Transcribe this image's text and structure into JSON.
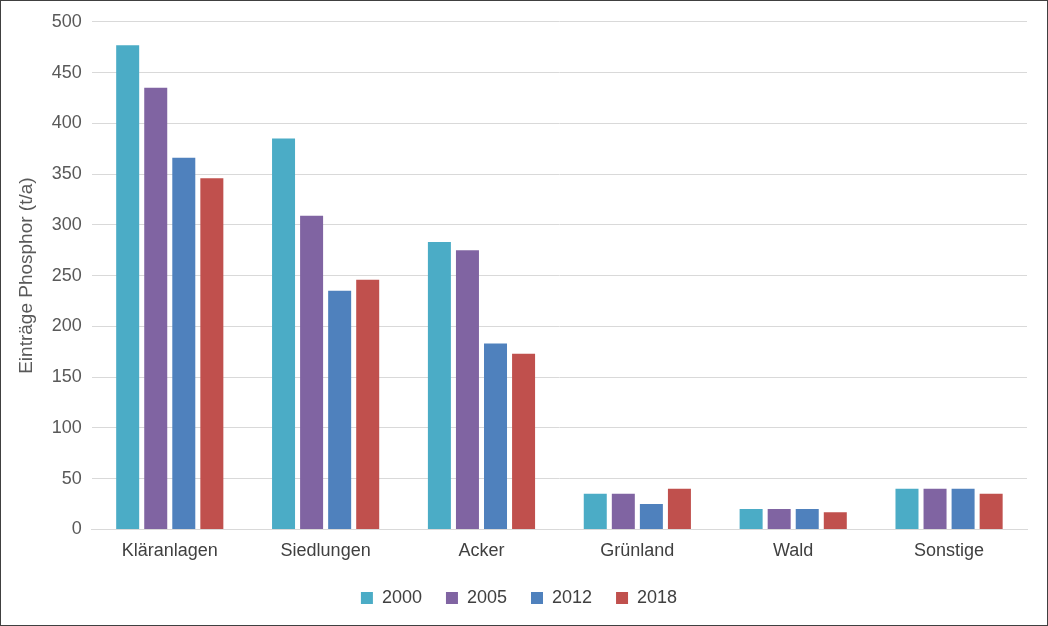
{
  "chart_data": {
    "type": "bar",
    "y_label": "Einträge Phosphor (t/a)",
    "categories": [
      "Kläranlagen",
      "Siedlungen",
      "Acker",
      "Grünland",
      "Wald",
      "Sonstige"
    ],
    "series": [
      {
        "name": "2000",
        "color": "#4bacc6",
        "values": [
          477,
          385,
          283,
          35,
          20,
          40
        ]
      },
      {
        "name": "2005",
        "color": "#8064a2",
        "values": [
          435,
          309,
          275,
          35,
          20,
          40
        ]
      },
      {
        "name": "2012",
        "color": "#4f81bd",
        "values": [
          366,
          235,
          183,
          25,
          20,
          40
        ]
      },
      {
        "name": "2018",
        "color": "#c0504d",
        "values": [
          346,
          246,
          173,
          40,
          17,
          35
        ]
      }
    ],
    "ylim": [
      0,
      500
    ],
    "yticks": [
      0,
      50,
      100,
      150,
      200,
      250,
      300,
      350,
      400,
      450,
      500
    ],
    "grid": true,
    "legend": "bottom"
  }
}
